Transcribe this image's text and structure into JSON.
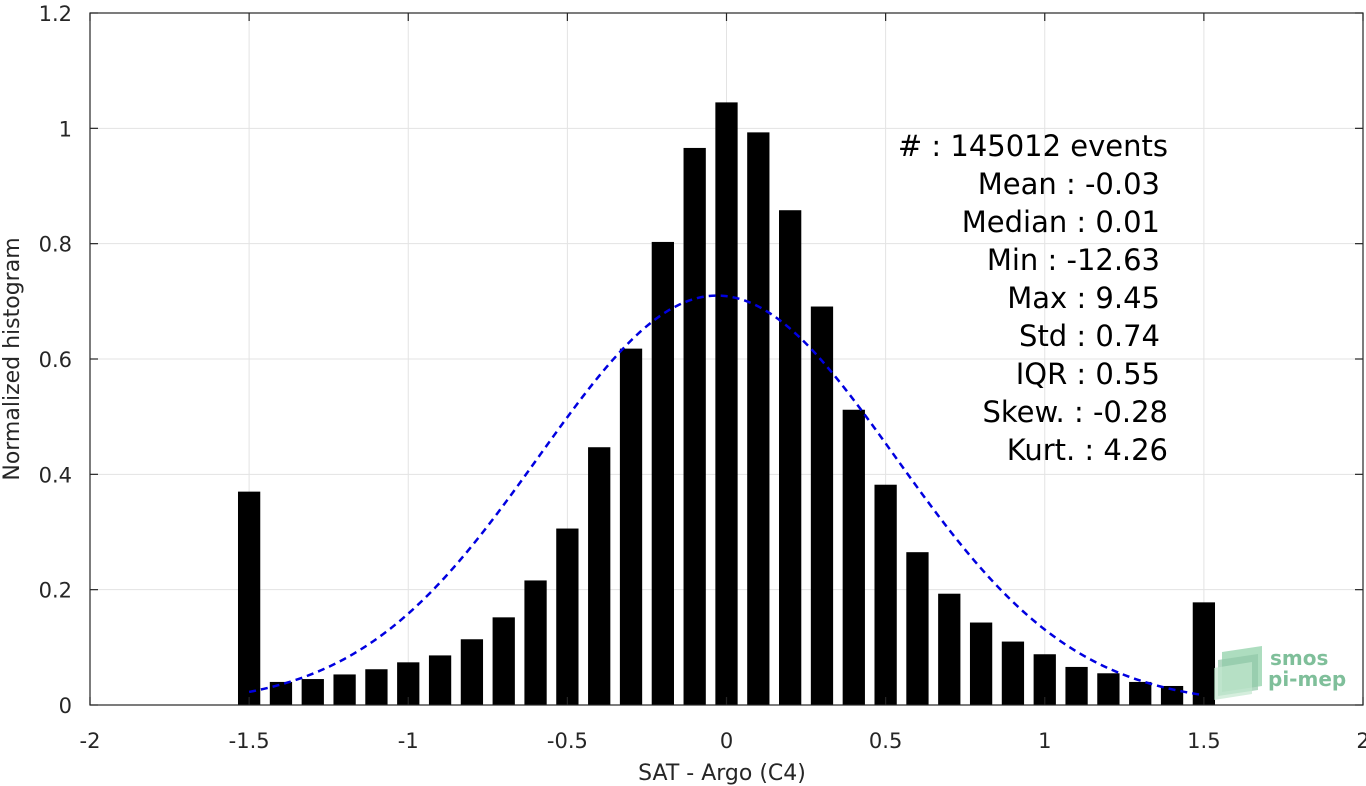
{
  "chart_data": {
    "type": "bar",
    "title": "",
    "xlabel": "SAT - Argo (C4)",
    "ylabel": "Normalized histogram",
    "xlim": [
      -2,
      2
    ],
    "ylim": [
      0,
      1.2
    ],
    "grid": true,
    "bar_width": 0.07,
    "xticks": [
      -2,
      -1.5,
      -1,
      -0.5,
      0,
      0.5,
      1,
      1.5,
      2
    ],
    "xtick_labels": [
      "-2",
      "-1.5",
      "-1",
      "-0.5",
      "0",
      "0.5",
      "1",
      "1.5",
      "2"
    ],
    "yticks": [
      0,
      0.2,
      0.4,
      0.6,
      0.8,
      1,
      1.2
    ],
    "ytick_labels": [
      "0",
      "0.2",
      "0.4",
      "0.6",
      "0.8",
      "1",
      "1.2"
    ],
    "x": [
      -1.5,
      -1.4,
      -1.3,
      -1.2,
      -1.1,
      -1.0,
      -0.9,
      -0.8,
      -0.7,
      -0.6,
      -0.5,
      -0.4,
      -0.3,
      -0.2,
      -0.1,
      0.0,
      0.1,
      0.2,
      0.3,
      0.4,
      0.5,
      0.6,
      0.7,
      0.8,
      0.9,
      1.0,
      1.1,
      1.2,
      1.3,
      1.4,
      1.5
    ],
    "values": [
      0.37,
      0.04,
      0.045,
      0.053,
      0.062,
      0.074,
      0.086,
      0.114,
      0.152,
      0.216,
      0.306,
      0.447,
      0.618,
      0.803,
      0.966,
      1.045,
      0.993,
      0.858,
      0.691,
      0.512,
      0.382,
      0.265,
      0.193,
      0.143,
      0.11,
      0.088,
      0.066,
      0.055,
      0.04,
      0.033,
      0.178
    ],
    "bar_color": "#000000",
    "fit_curve": {
      "style": "dashed",
      "color": "#0000e0",
      "mean": -0.03,
      "std": 0.56,
      "peak": 0.71,
      "x_range": [
        -1.5,
        1.5
      ]
    },
    "stats_box": {
      "placement": "top-right",
      "lines": [
        "#  : 145012 events",
        "Mean : -0.03",
        "Median : 0.01",
        "Min : -12.63",
        "Max : 9.45",
        "Std : 0.74",
        "IQR : 0.55",
        "Skew. : -0.28",
        "Kurt. : 4.26"
      ]
    }
  },
  "logo": {
    "line1": "smos",
    "line2": "pi-mep",
    "color": "#7fbf9a"
  }
}
